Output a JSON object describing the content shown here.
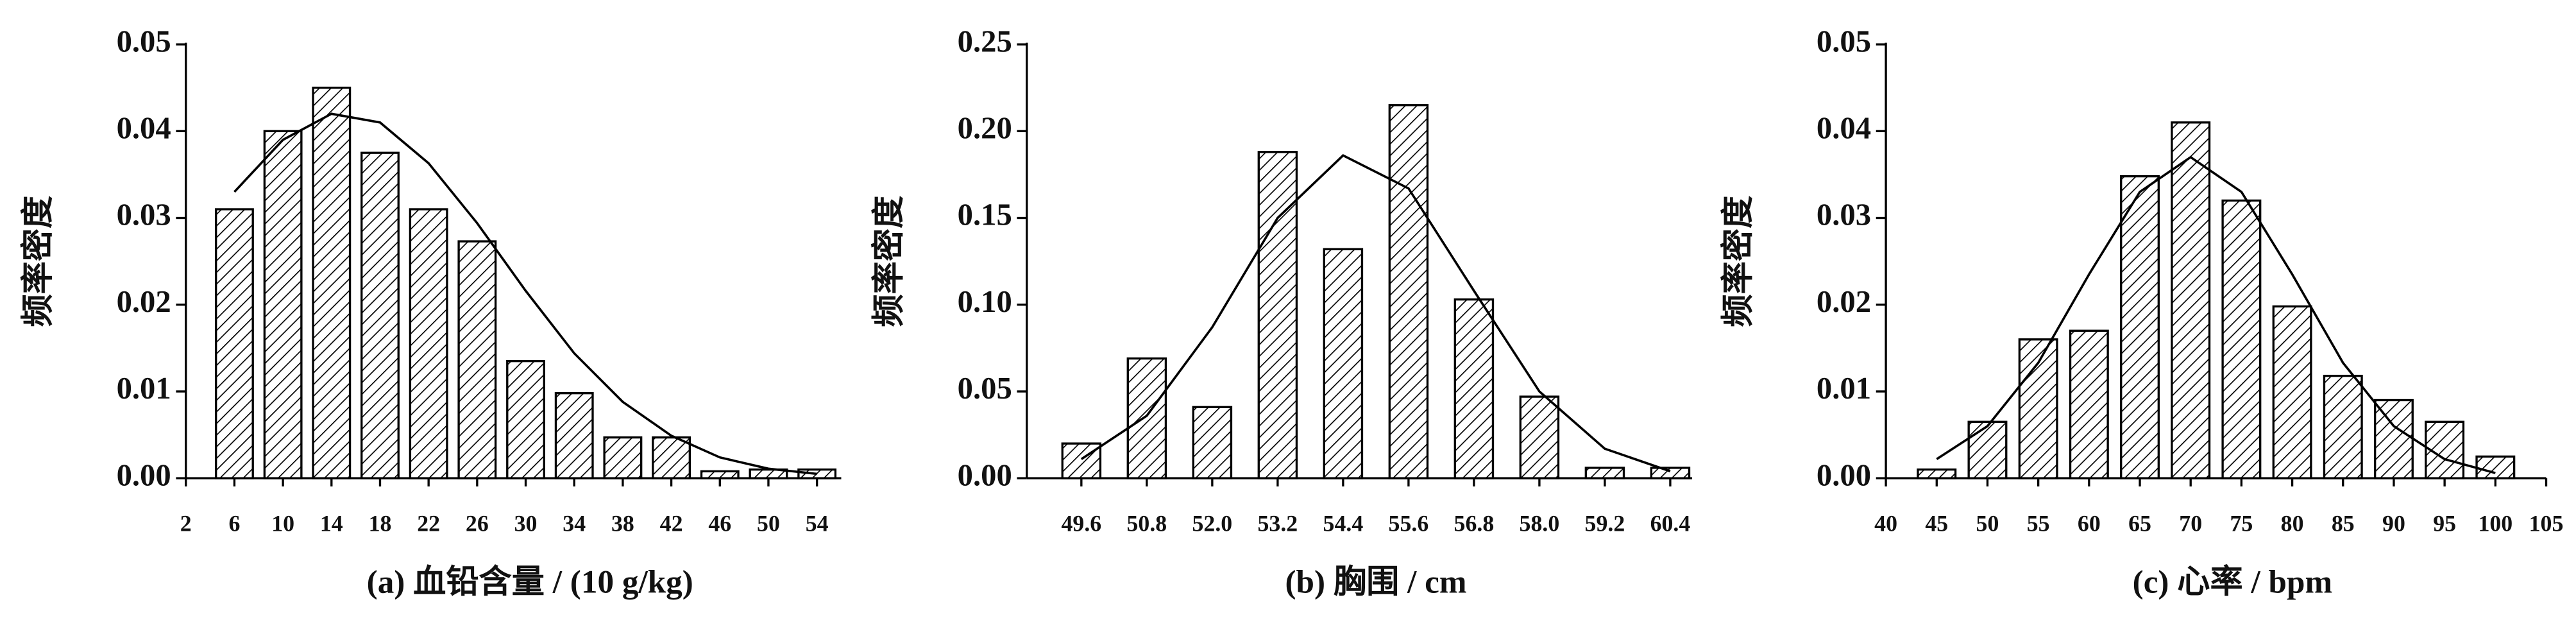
{
  "chart_data": [
    {
      "type": "bar",
      "x_label": "(a) 血铅含量 / (10 g/kg)",
      "y_label": "频率密度",
      "color": "#000000",
      "x": [
        6,
        10,
        14,
        18,
        22,
        26,
        30,
        34,
        38,
        42,
        46,
        50,
        54
      ],
      "values": [
        0.031,
        0.04,
        0.045,
        0.0375,
        0.031,
        0.0273,
        0.0135,
        0.0098,
        0.0047,
        0.0047,
        0.0008,
        0.001,
        0.001
      ],
      "curve_x": [
        6,
        10,
        14,
        18,
        22,
        26,
        30,
        34,
        38,
        42,
        46,
        50,
        54
      ],
      "curve_y": [
        0.033,
        0.039,
        0.042,
        0.041,
        0.0363,
        0.0294,
        0.0216,
        0.0144,
        0.0088,
        0.0049,
        0.0024,
        0.0011,
        0.0005
      ],
      "xlim": [
        2,
        56
      ],
      "xticks": [
        2,
        6,
        10,
        14,
        18,
        22,
        26,
        30,
        34,
        38,
        42,
        46,
        50,
        54
      ],
      "ylim": [
        0,
        0.05
      ],
      "yticks": [
        {
          "value": 0,
          "label": "0.00"
        },
        0.01,
        0.02,
        0.03,
        0.04,
        0.05
      ]
    },
    {
      "type": "bar",
      "x_label": "(b) 胸围 / cm",
      "y_label": "频率密度",
      "color": "#000000",
      "x": [
        49.6,
        50.8,
        52.0,
        53.2,
        54.4,
        55.6,
        56.8,
        58.0,
        59.2,
        60.4
      ],
      "values": [
        0.02,
        0.069,
        0.041,
        0.188,
        0.132,
        0.215,
        0.103,
        0.047,
        0.006,
        0.006
      ],
      "curve_x": [
        49.6,
        50.8,
        52.0,
        53.2,
        54.4,
        55.6,
        56.8,
        58.0,
        59.2,
        60.4
      ],
      "curve_y": [
        0.011,
        0.036,
        0.087,
        0.15,
        0.186,
        0.167,
        0.108,
        0.05,
        0.017,
        0.004
      ],
      "xlim": [
        48.6,
        60.8
      ],
      "xticks": [
        49.6,
        50.8,
        {
          "value": 52,
          "label": "52.0"
        },
        53.2,
        54.4,
        55.6,
        56.8,
        {
          "value": 58,
          "label": "58.0"
        },
        59.2,
        60.4
      ],
      "ylim": [
        0,
        0.25
      ],
      "yticks": [
        {
          "value": 0,
          "label": "0.00"
        },
        0.05,
        {
          "value": 0.1,
          "label": "0.10"
        },
        0.15,
        {
          "value": 0.2,
          "label": "0.20"
        },
        0.25
      ]
    },
    {
      "type": "bar",
      "x_label": "(c) 心率 / bpm",
      "y_label": "频率密度",
      "color": "#000000",
      "x": [
        45,
        50,
        55,
        60,
        65,
        70,
        75,
        80,
        85,
        90,
        95,
        100
      ],
      "values": [
        0.001,
        0.0065,
        0.016,
        0.017,
        0.0348,
        0.041,
        0.032,
        0.0198,
        0.0118,
        0.009,
        0.0065,
        0.0025
      ],
      "curve_x": [
        45,
        50,
        55,
        60,
        65,
        70,
        75,
        80,
        85,
        90,
        95,
        100
      ],
      "curve_y": [
        0.0022,
        0.006,
        0.0133,
        0.0235,
        0.033,
        0.037,
        0.033,
        0.0235,
        0.0133,
        0.006,
        0.0022,
        0.0006
      ],
      "xlim": [
        40,
        105
      ],
      "xticks": [
        40,
        45,
        50,
        55,
        60,
        65,
        70,
        75,
        80,
        85,
        90,
        95,
        100,
        105
      ],
      "ylim": [
        0,
        0.05
      ],
      "yticks": [
        {
          "value": 0,
          "label": "0.00"
        },
        0.01,
        0.02,
        0.03,
        0.04,
        0.05
      ]
    }
  ]
}
